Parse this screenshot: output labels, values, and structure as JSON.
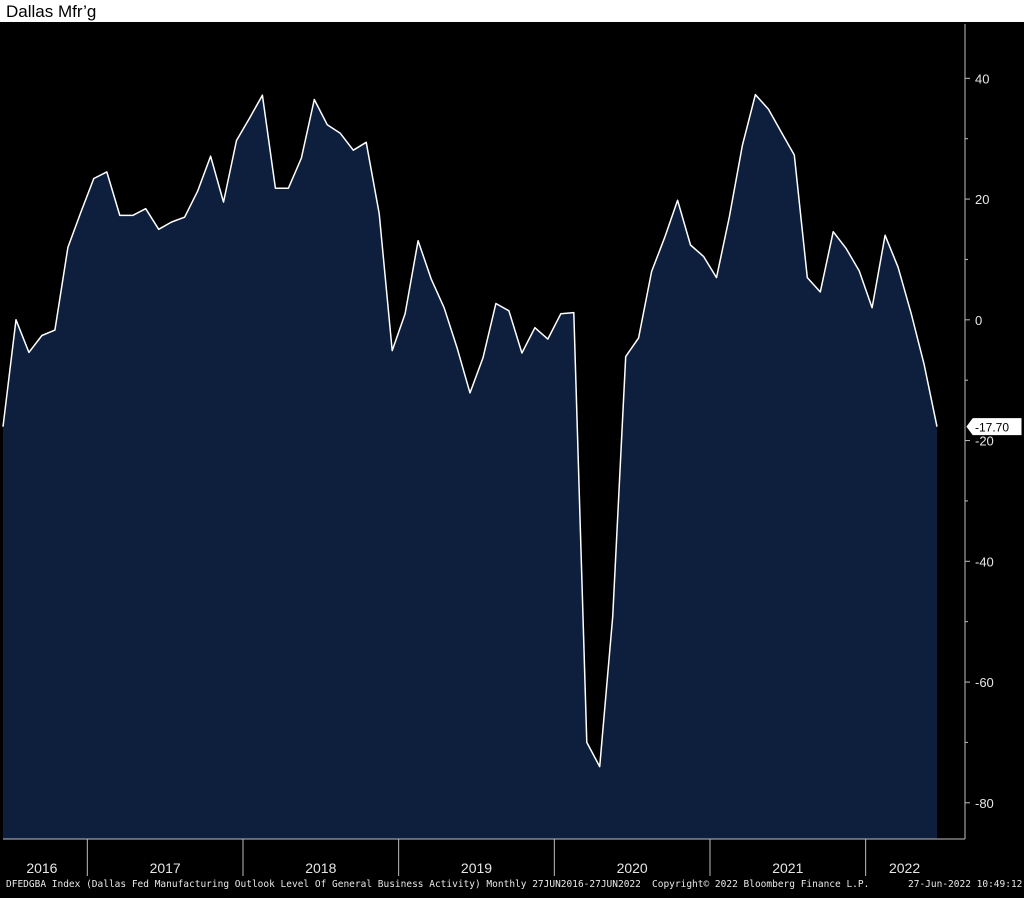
{
  "title": "Dallas Mfr’g",
  "footer": {
    "left": "DFEDGBA Index (Dallas Fed Manufacturing Outlook Level Of General Business Activity) Monthly 27JUN2016-27JUN2022",
    "center": "Copyright© 2022 Bloomberg Finance L.P.",
    "right": "27-Jun-2022 10:49:12"
  },
  "colors": {
    "background": "#000000",
    "area_fill": "#0d1f3c",
    "line": "#ffffff",
    "axis": "#bfbfbf"
  },
  "chart_data": {
    "type": "area",
    "title": "Dallas Mfr’g",
    "xlabel": "",
    "ylabel": "",
    "ylim": [
      -86,
      49
    ],
    "yticks": [
      40,
      20,
      0,
      -20,
      -40,
      -60,
      -80
    ],
    "ytick_labels": [
      "40",
      "20",
      "0",
      "-20",
      "-40",
      "-60",
      "-80"
    ],
    "year_labels": [
      "2016",
      "2017",
      "2018",
      "2019",
      "2020",
      "2021",
      "2022"
    ],
    "x_start": "2016-06",
    "x_end": "2022-06",
    "last_value_label": "-17.70",
    "grid": false,
    "series": [
      {
        "x": [
          "2016-06",
          "2016-07",
          "2016-08",
          "2016-09",
          "2016-10",
          "2016-11",
          "2016-12",
          "2017-01",
          "2017-02",
          "2017-03",
          "2017-04",
          "2017-05",
          "2017-06",
          "2017-07",
          "2017-08",
          "2017-09",
          "2017-10",
          "2017-11",
          "2017-12",
          "2018-01",
          "2018-02",
          "2018-03",
          "2018-04",
          "2018-05",
          "2018-06",
          "2018-07",
          "2018-08",
          "2018-09",
          "2018-10",
          "2018-11",
          "2018-12",
          "2019-01",
          "2019-02",
          "2019-03",
          "2019-04",
          "2019-05",
          "2019-06",
          "2019-07",
          "2019-08",
          "2019-09",
          "2019-10",
          "2019-11",
          "2019-12",
          "2020-01",
          "2020-02",
          "2020-03",
          "2020-04",
          "2020-05",
          "2020-06",
          "2020-07",
          "2020-08",
          "2020-09",
          "2020-10",
          "2020-11",
          "2020-12",
          "2021-01",
          "2021-02",
          "2021-03",
          "2021-04",
          "2021-05",
          "2021-06",
          "2021-07",
          "2021-08",
          "2021-09",
          "2021-10",
          "2021-11",
          "2021-12",
          "2022-01",
          "2022-02",
          "2022-03",
          "2022-04",
          "2022-05",
          "2022-06"
        ],
        "values": [
          -17.7,
          0.0,
          -5.4,
          -2.6,
          -1.7,
          12.0,
          17.8,
          23.4,
          24.5,
          17.3,
          17.3,
          18.4,
          15.0,
          16.2,
          17.0,
          21.3,
          27.1,
          19.5,
          29.7,
          33.4,
          37.2,
          21.8,
          21.8,
          26.8,
          36.5,
          32.3,
          30.9,
          28.1,
          29.4,
          17.6,
          -5.1,
          1.0,
          13.1,
          6.8,
          2.0,
          -4.6,
          -12.1,
          -6.3,
          2.7,
          1.5,
          -5.5,
          -1.3,
          -3.2,
          1.0,
          1.2,
          -70.0,
          -74.0,
          -49.2,
          -6.1,
          -3.0,
          8.0,
          13.6,
          19.8,
          12.4,
          10.5,
          7.0,
          17.1,
          28.9,
          37.3,
          34.9,
          31.1,
          27.3,
          7.0,
          4.6,
          14.6,
          11.8,
          8.1,
          2.0,
          14.0,
          8.7,
          1.1,
          -7.3,
          -17.7
        ]
      }
    ]
  }
}
